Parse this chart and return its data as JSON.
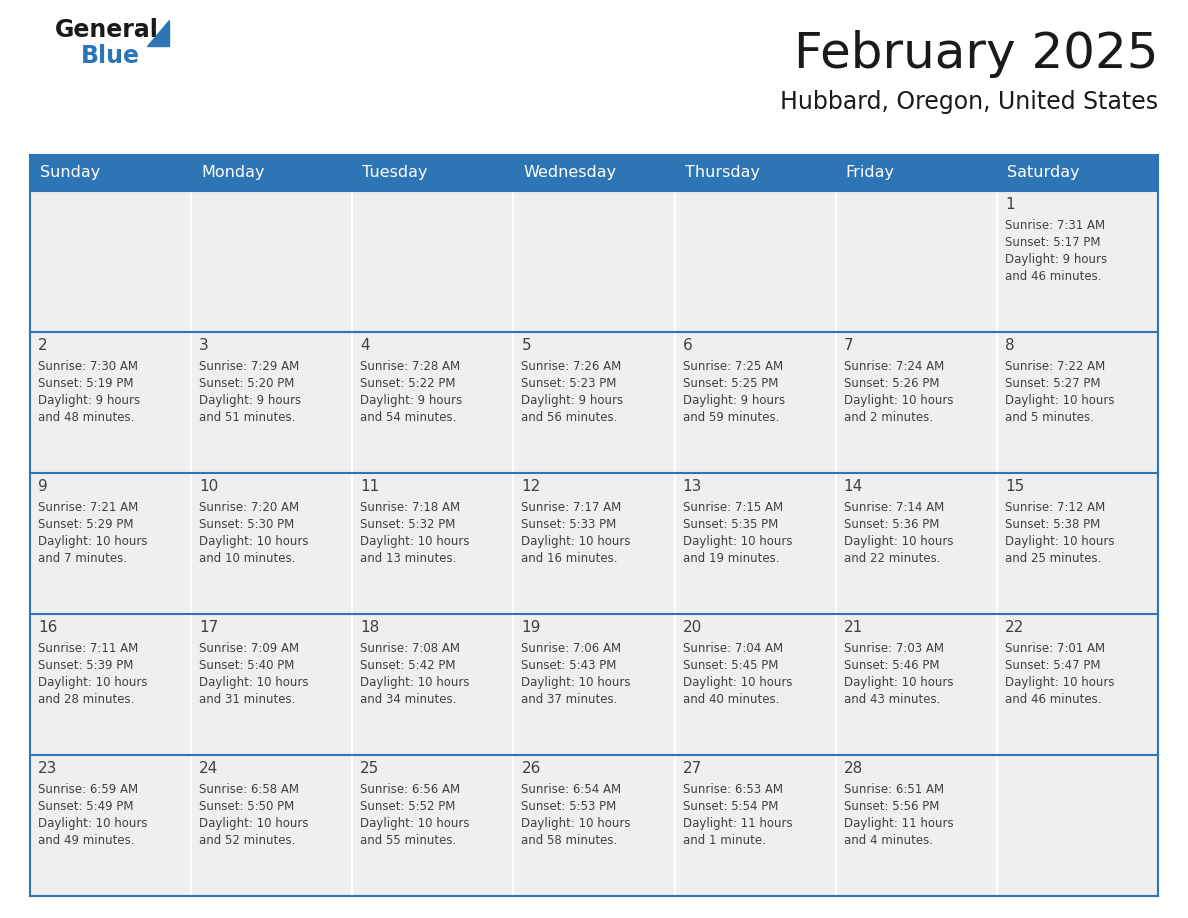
{
  "title": "February 2025",
  "subtitle": "Hubbard, Oregon, United States",
  "header_bg": "#2E75B6",
  "header_text": "#FFFFFF",
  "cell_bg": "#EFEFEF",
  "cell_bg_empty": "#EFEFEF",
  "border_color": "#2E75B6",
  "sep_color": "#FFFFFF",
  "text_color": "#404040",
  "days_of_week": [
    "Sunday",
    "Monday",
    "Tuesday",
    "Wednesday",
    "Thursday",
    "Friday",
    "Saturday"
  ],
  "weeks": [
    [
      {
        "day": "",
        "info": ""
      },
      {
        "day": "",
        "info": ""
      },
      {
        "day": "",
        "info": ""
      },
      {
        "day": "",
        "info": ""
      },
      {
        "day": "",
        "info": ""
      },
      {
        "day": "",
        "info": ""
      },
      {
        "day": "1",
        "info": "Sunrise: 7:31 AM\nSunset: 5:17 PM\nDaylight: 9 hours\nand 46 minutes."
      }
    ],
    [
      {
        "day": "2",
        "info": "Sunrise: 7:30 AM\nSunset: 5:19 PM\nDaylight: 9 hours\nand 48 minutes."
      },
      {
        "day": "3",
        "info": "Sunrise: 7:29 AM\nSunset: 5:20 PM\nDaylight: 9 hours\nand 51 minutes."
      },
      {
        "day": "4",
        "info": "Sunrise: 7:28 AM\nSunset: 5:22 PM\nDaylight: 9 hours\nand 54 minutes."
      },
      {
        "day": "5",
        "info": "Sunrise: 7:26 AM\nSunset: 5:23 PM\nDaylight: 9 hours\nand 56 minutes."
      },
      {
        "day": "6",
        "info": "Sunrise: 7:25 AM\nSunset: 5:25 PM\nDaylight: 9 hours\nand 59 minutes."
      },
      {
        "day": "7",
        "info": "Sunrise: 7:24 AM\nSunset: 5:26 PM\nDaylight: 10 hours\nand 2 minutes."
      },
      {
        "day": "8",
        "info": "Sunrise: 7:22 AM\nSunset: 5:27 PM\nDaylight: 10 hours\nand 5 minutes."
      }
    ],
    [
      {
        "day": "9",
        "info": "Sunrise: 7:21 AM\nSunset: 5:29 PM\nDaylight: 10 hours\nand 7 minutes."
      },
      {
        "day": "10",
        "info": "Sunrise: 7:20 AM\nSunset: 5:30 PM\nDaylight: 10 hours\nand 10 minutes."
      },
      {
        "day": "11",
        "info": "Sunrise: 7:18 AM\nSunset: 5:32 PM\nDaylight: 10 hours\nand 13 minutes."
      },
      {
        "day": "12",
        "info": "Sunrise: 7:17 AM\nSunset: 5:33 PM\nDaylight: 10 hours\nand 16 minutes."
      },
      {
        "day": "13",
        "info": "Sunrise: 7:15 AM\nSunset: 5:35 PM\nDaylight: 10 hours\nand 19 minutes."
      },
      {
        "day": "14",
        "info": "Sunrise: 7:14 AM\nSunset: 5:36 PM\nDaylight: 10 hours\nand 22 minutes."
      },
      {
        "day": "15",
        "info": "Sunrise: 7:12 AM\nSunset: 5:38 PM\nDaylight: 10 hours\nand 25 minutes."
      }
    ],
    [
      {
        "day": "16",
        "info": "Sunrise: 7:11 AM\nSunset: 5:39 PM\nDaylight: 10 hours\nand 28 minutes."
      },
      {
        "day": "17",
        "info": "Sunrise: 7:09 AM\nSunset: 5:40 PM\nDaylight: 10 hours\nand 31 minutes."
      },
      {
        "day": "18",
        "info": "Sunrise: 7:08 AM\nSunset: 5:42 PM\nDaylight: 10 hours\nand 34 minutes."
      },
      {
        "day": "19",
        "info": "Sunrise: 7:06 AM\nSunset: 5:43 PM\nDaylight: 10 hours\nand 37 minutes."
      },
      {
        "day": "20",
        "info": "Sunrise: 7:04 AM\nSunset: 5:45 PM\nDaylight: 10 hours\nand 40 minutes."
      },
      {
        "day": "21",
        "info": "Sunrise: 7:03 AM\nSunset: 5:46 PM\nDaylight: 10 hours\nand 43 minutes."
      },
      {
        "day": "22",
        "info": "Sunrise: 7:01 AM\nSunset: 5:47 PM\nDaylight: 10 hours\nand 46 minutes."
      }
    ],
    [
      {
        "day": "23",
        "info": "Sunrise: 6:59 AM\nSunset: 5:49 PM\nDaylight: 10 hours\nand 49 minutes."
      },
      {
        "day": "24",
        "info": "Sunrise: 6:58 AM\nSunset: 5:50 PM\nDaylight: 10 hours\nand 52 minutes."
      },
      {
        "day": "25",
        "info": "Sunrise: 6:56 AM\nSunset: 5:52 PM\nDaylight: 10 hours\nand 55 minutes."
      },
      {
        "day": "26",
        "info": "Sunrise: 6:54 AM\nSunset: 5:53 PM\nDaylight: 10 hours\nand 58 minutes."
      },
      {
        "day": "27",
        "info": "Sunrise: 6:53 AM\nSunset: 5:54 PM\nDaylight: 11 hours\nand 1 minute."
      },
      {
        "day": "28",
        "info": "Sunrise: 6:51 AM\nSunset: 5:56 PM\nDaylight: 11 hours\nand 4 minutes."
      },
      {
        "day": "",
        "info": ""
      }
    ]
  ],
  "logo_color_general": "#1a1a1a",
  "logo_color_blue": "#2E75B6"
}
